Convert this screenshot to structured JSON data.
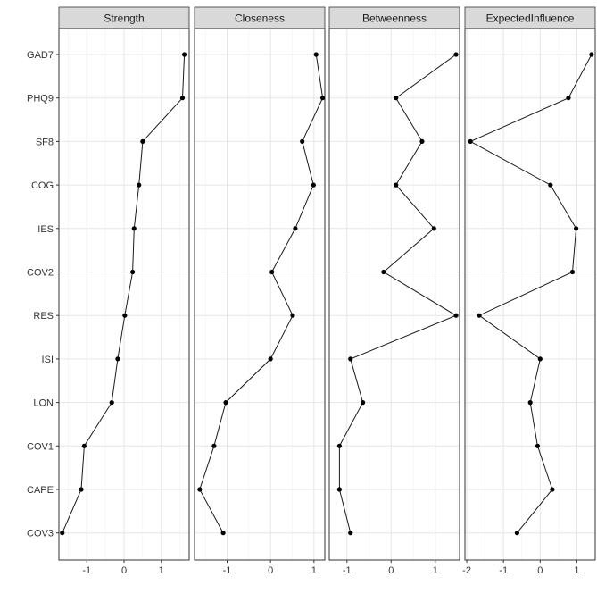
{
  "chart_data": {
    "type": "line",
    "orientation": "horizontal-facets",
    "categories": [
      "GAD7",
      "PHQ9",
      "SF8",
      "COG",
      "IES",
      "COV2",
      "RES",
      "ISI",
      "LON",
      "COV1",
      "CAPE",
      "COV3"
    ],
    "grid": true,
    "panels": [
      {
        "title": "Strength",
        "xlim": [
          -1.75,
          1.75
        ],
        "xticks": [
          -1,
          0,
          1
        ],
        "values": [
          1.62,
          1.57,
          0.5,
          0.4,
          0.27,
          0.23,
          0.02,
          -0.17,
          -0.33,
          -1.07,
          -1.15,
          -1.66
        ]
      },
      {
        "title": "Closeness",
        "xlim": [
          -1.75,
          1.25
        ],
        "xticks": [
          -1,
          0,
          1
        ],
        "values": [
          1.05,
          1.2,
          0.73,
          0.99,
          0.57,
          0.03,
          0.51,
          0.0,
          -1.03,
          -1.3,
          -1.63,
          -1.09
        ]
      },
      {
        "title": "Betweenness",
        "xlim": [
          -1.4,
          1.55
        ],
        "xticks": [
          -1,
          0,
          1
        ],
        "values": [
          1.47,
          0.11,
          0.7,
          0.11,
          0.97,
          -0.17,
          1.47,
          -0.92,
          -0.64,
          -1.17,
          -1.17,
          -0.92
        ]
      },
      {
        "title": "ExpectedInfluence",
        "xlim": [
          -2.05,
          1.5
        ],
        "xticks": [
          -2,
          -1,
          0,
          1
        ],
        "values": [
          1.4,
          0.77,
          -1.9,
          0.28,
          0.98,
          0.88,
          -1.66,
          0.0,
          -0.27,
          -0.07,
          0.33,
          -0.63
        ]
      }
    ]
  }
}
